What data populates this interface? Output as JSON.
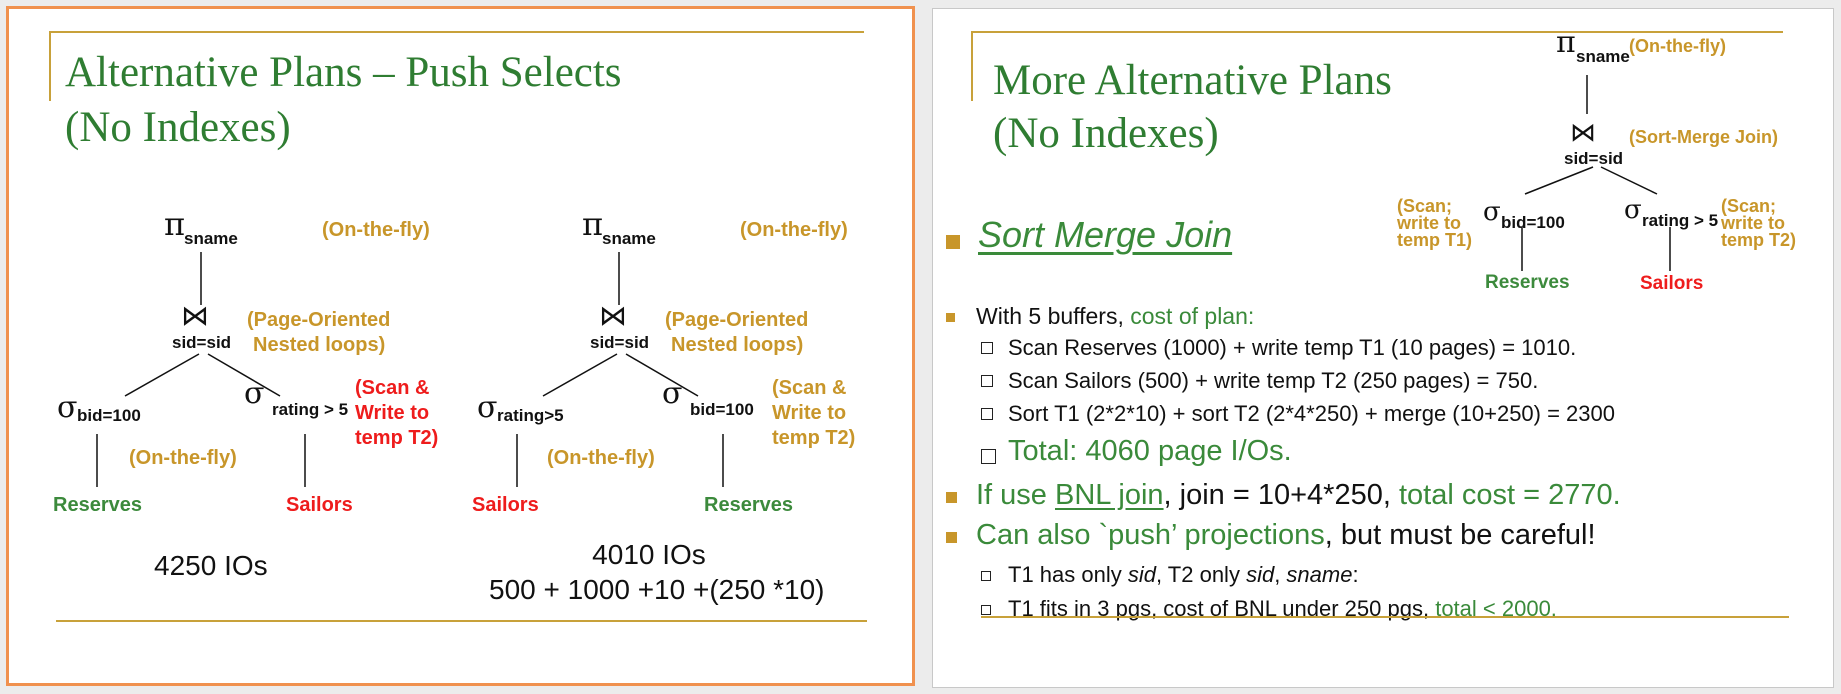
{
  "left_slide": {
    "title_line1": "Alternative Plans – Push Selects",
    "title_line2": "(No Indexes)",
    "plan1": {
      "project_sub": "sname",
      "project_note": "(On-the-fly)",
      "join_sub": "sid=sid",
      "join_note_line1": "(Page-Oriented",
      "join_note_line2": "Nested  loops)",
      "left_select_sub": "bid=100",
      "left_select_note": "(On-the-fly)",
      "right_select_sub": "rating > 5",
      "right_select_note_line1": "(Scan &",
      "right_select_note_line2": "Write to",
      "right_select_note_line3": "temp T2)",
      "left_relation": "Reserves",
      "right_relation": "Sailors",
      "cost": "4250 IOs"
    },
    "plan2": {
      "project_sub": "sname",
      "project_note": "(On-the-fly)",
      "join_sub": "sid=sid",
      "join_note_line1": "(Page-Oriented",
      "join_note_line2": "Nested  loops)",
      "left_select_sub": "rating>5",
      "left_select_note": "(On-the-fly)",
      "right_select_sub": "bid=100",
      "right_select_note_line1": "(Scan &",
      "right_select_note_line2": "Write to",
      "right_select_note_line3": "temp T2)",
      "left_relation": "Sailors",
      "right_relation": "Reserves",
      "cost_line1": "4010 IOs",
      "cost_line2": "500 + 1000 +10 +(250 *10)"
    }
  },
  "right_slide": {
    "title_line1": "More Alternative Plans",
    "title_line2": "(No Indexes)",
    "tree": {
      "project_sub": "sname",
      "project_note": "(On-the-fly)",
      "join_sub": "sid=sid",
      "join_note": "(Sort-Merge Join)",
      "left_note_line1": "(Scan;",
      "left_note_line2": "write to",
      "left_note_line3": "temp T1)",
      "left_select_sub": "bid=100",
      "right_select_sub": "rating > 5",
      "right_note_line1": "(Scan;",
      "right_note_line2": "write to",
      "right_note_line3": "temp T2)",
      "left_relation": "Reserves",
      "right_relation": "Sailors"
    },
    "heading": "Sort Merge Join",
    "b1_prefix": "With 5 buffers, ",
    "b1_highlight": "cost of plan:",
    "b1_sub1": "Scan Reserves (1000) + write temp T1 (10 pages) = 1010.",
    "b1_sub2": "Scan Sailors (500) + write temp T2 (250 pages) = 750.",
    "b1_sub3": "Sort T1 (2*2*10) + sort T2 (2*4*250) + merge (10+250) = 2300",
    "b1_sub4": "Total:  4060 page I/Os.",
    "b2_prefix": "If use ",
    "b2_link": "BNL join",
    "b2_mid": ", join = 10+4*250, ",
    "b2_highlight": "total cost = 2770.",
    "b3_highlight": "Can also `push’ projections",
    "b3_rest": ", but must be careful!",
    "b3_sub1_a": "T1 has only ",
    "b3_sub1_b": "sid",
    "b3_sub1_c": ", T2 only ",
    "b3_sub1_d": "sid",
    "b3_sub1_e": ", ",
    "b3_sub1_f": "sname",
    "b3_sub1_g": ":",
    "b3_sub2_prefix": "T1 fits in 3 pgs, cost of BNL under 250 pgs, ",
    "b3_sub2_highlight": "total < 2000."
  },
  "colors": {
    "title_green": "#2f7d32",
    "annotation_gold": "#c8962a",
    "accent_red": "#ee1c1c",
    "slide_border_orange": "#f0914e"
  }
}
